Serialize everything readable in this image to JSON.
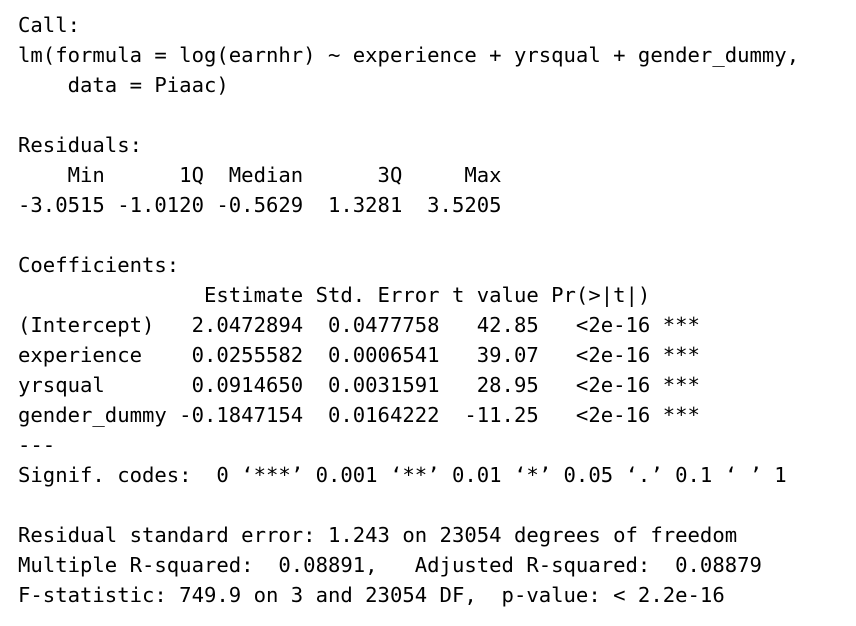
{
  "console": {
    "lines": [
      "Call:",
      "lm(formula = log(earnhr) ~ experience + yrsqual + gender_dummy,",
      "    data = Piaac)",
      "",
      "Residuals:",
      "    Min      1Q  Median      3Q     Max ",
      "-3.0515 -1.0120 -0.5629  1.3281  3.5205 ",
      "",
      "Coefficients:",
      "               Estimate Std. Error t value Pr(>|t|)    ",
      "(Intercept)   2.0472894  0.0477758   42.85   <2e-16 ***",
      "experience    0.0255582  0.0006541   39.07   <2e-16 ***",
      "yrsqual       0.0914650  0.0031591   28.95   <2e-16 ***",
      "gender_dummy -0.1847154  0.0164222  -11.25   <2e-16 ***",
      "---",
      "Signif. codes:  0 ‘***’ 0.001 ‘**’ 0.01 ‘*’ 0.05 ‘.’ 0.1 ‘ ’ 1",
      "",
      "Residual standard error: 1.243 on 23054 degrees of freedom",
      "Multiple R-squared:  0.08891,   Adjusted R-squared:  0.08879 ",
      "F-statistic: 749.9 on 3 and 23054 DF,  p-value: < 2.2e-16"
    ]
  }
}
